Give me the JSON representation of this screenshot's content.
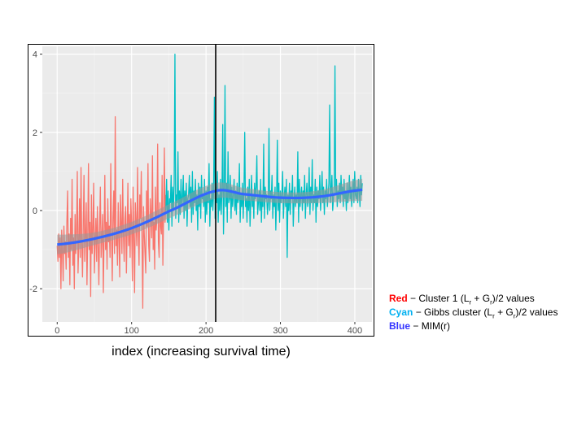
{
  "chart_data": {
    "type": "line",
    "xlabel": "index (increasing survival time)",
    "ylabel": "",
    "xlim": [
      -20,
      423
    ],
    "ylim": [
      -2.85,
      4.2
    ],
    "x_ticks": [
      0,
      100,
      200,
      300,
      400
    ],
    "y_ticks": [
      -2,
      0,
      2,
      4
    ],
    "x_tick_labels": [
      "0",
      "100",
      "200",
      "300",
      "400"
    ],
    "y_tick_labels": [
      "-2",
      "0",
      "2",
      "4"
    ],
    "grid": true,
    "vertical_line_x": 213,
    "series": [
      {
        "key": "red",
        "color": "#f8766d",
        "x_start": 0,
        "values": [
          -0.9,
          -1.3,
          -0.6,
          -1.2,
          -0.7,
          -2.0,
          -0.5,
          -1.0,
          -1.8,
          -0.4,
          -1.1,
          -0.8,
          -1.5,
          -0.3,
          0.5,
          -1.2,
          -0.6,
          -1.9,
          -0.2,
          -1.0,
          0.8,
          -1.4,
          -0.7,
          -2.0,
          -0.1,
          -1.1,
          -0.5,
          1.0,
          -1.6,
          -0.9,
          0.3,
          -1.2,
          1.1,
          -0.8,
          -1.7,
          -0.4,
          0.9,
          -1.3,
          -0.6,
          0.2,
          -1.9,
          -0.7,
          1.2,
          -1.0,
          -0.3,
          -2.2,
          0.4,
          -1.1,
          -0.5,
          0.7,
          -1.6,
          -0.8,
          -0.2,
          -1.3,
          0.1,
          -0.9,
          -1.9,
          -0.4,
          0.6,
          -1.2,
          -0.7,
          -0.1,
          -2.1,
          -0.6,
          0.9,
          -1.0,
          -0.3,
          -1.5,
          0.3,
          -0.8,
          -0.4,
          -1.2,
          1.2,
          -0.6,
          -1.8,
          -0.2,
          0.5,
          -1.1,
          2.4,
          -0.9,
          -0.5,
          -1.4,
          0.2,
          -0.7,
          -1.7,
          0.4,
          -0.3,
          -1.1,
          0.8,
          -0.6,
          -1.3,
          -0.2,
          0.1,
          -1.6,
          -0.5,
          0.7,
          -0.9,
          -0.1,
          -1.2,
          0.3,
          -0.4,
          -1.8,
          0.6,
          -0.7,
          -2.1,
          0.2,
          -0.3,
          -0.9,
          1.1,
          -0.5,
          -1.4,
          0.4,
          -0.2,
          1.0,
          -0.8,
          -2.5,
          0.1,
          -0.6,
          -1.1,
          -1.6,
          0.5,
          -0.4,
          1.2,
          -0.9,
          -1.3,
          0.3,
          -0.1,
          -0.7,
          1.4,
          -1.0,
          -0.3,
          -1.5,
          0.6,
          -0.5,
          -0.2,
          1.7,
          -0.8,
          -1.2,
          0.2,
          -0.4,
          -0.6,
          0.9,
          -1.4,
          -0.1,
          1.6,
          -0.3,
          0.4
        ]
      },
      {
        "key": "cyan",
        "color": "#00bfc4",
        "x_start": 146,
        "values": [
          0.0,
          0.8,
          -0.3,
          0.5,
          -0.5,
          0.3,
          0.2,
          0.9,
          -0.4,
          0.6,
          0.0,
          0.7,
          4.0,
          -0.2,
          0.4,
          0.2,
          1.5,
          -0.3,
          0.5,
          -0.1,
          0.8,
          0.1,
          0.3,
          0.9,
          -0.2,
          0.5,
          0.0,
          0.7,
          -0.4,
          0.3,
          0.4,
          0.9,
          0.1,
          0.6,
          -0.3,
          1.0,
          -0.1,
          0.5,
          0.2,
          0.8,
          0.0,
          0.4,
          -0.5,
          0.7,
          0.1,
          0.6,
          -0.2,
          0.9,
          0.3,
          0.4,
          0.1,
          0.8,
          -0.3,
          0.5,
          -0.1,
          0.6,
          0.2,
          1.2,
          -0.4,
          0.3,
          0.1,
          0.7,
          0.0,
          0.5,
          2.9,
          -0.2,
          0.6,
          0.2,
          1.0,
          -0.3,
          0.4,
          0.0,
          0.8,
          -0.1,
          0.5,
          2.2,
          -0.6,
          0.4,
          3.2,
          0.1,
          0.7,
          -0.3,
          1.5,
          0.2,
          0.3,
          0.9,
          -0.2,
          0.6,
          0.1,
          0.4,
          0.8,
          0.0,
          0.5,
          -0.1,
          0.7,
          0.2,
          0.3,
          1.2,
          -0.3,
          0.4,
          0.1,
          0.7,
          -0.2,
          0.5,
          2.0,
          0.1,
          0.3,
          -0.3,
          0.6,
          0.0,
          0.8,
          -0.4,
          0.2,
          0.9,
          0.1,
          0.4,
          -0.2,
          0.7,
          0.3,
          0.6,
          1.4,
          -0.1,
          0.2,
          0.5,
          0.0,
          0.8,
          -0.3,
          0.4,
          0.1,
          1.7,
          -0.2,
          0.6,
          0.3,
          0.4,
          -0.1,
          0.2,
          2.1,
          0.0,
          0.5,
          0.3,
          0.9,
          -0.2,
          0.4,
          0.1,
          0.6,
          -0.5,
          0.3,
          1.8,
          0.0,
          0.7,
          -0.3,
          0.5,
          0.2,
          0.4,
          1.0,
          -0.2,
          0.3,
          0.6,
          0.1,
          0.8,
          -1.2,
          0.4,
          0.0,
          0.7,
          -0.1,
          0.5,
          0.3,
          0.9,
          -0.4,
          0.2,
          0.6,
          0.1,
          0.4,
          0.2,
          1.5,
          -0.3,
          0.8,
          0.1,
          0.4,
          0.6,
          0.0,
          0.5,
          0.2,
          0.9,
          -0.2,
          0.4,
          0.7,
          0.1,
          0.3,
          1.1,
          -0.1,
          0.6,
          0.2,
          1.3,
          0.0,
          0.4,
          0.2,
          0.8,
          -0.3,
          0.6,
          0.1,
          0.5,
          0.3,
          0.9,
          0.0,
          0.4,
          1.0,
          0.2,
          0.6,
          -0.1,
          0.5,
          0.3,
          0.8,
          0.1,
          0.4,
          0.7,
          2.7,
          0.2,
          0.5,
          0.9,
          0.0,
          0.3,
          0.6,
          3.7,
          0.4,
          0.8,
          0.1,
          0.5,
          0.3,
          0.7,
          0.2,
          0.9,
          0.4,
          0.6,
          0.1,
          0.8,
          0.3,
          0.5,
          0.0,
          0.7,
          0.2,
          0.4,
          0.9,
          0.3,
          0.6,
          0.1,
          0.5,
          0.8,
          0.2,
          1.0,
          0.4,
          0.3,
          0.6,
          0.2,
          0.8,
          0.5,
          0.1,
          0.9,
          0.4,
          0.7
        ]
      }
    ],
    "smooth": {
      "key": "blue",
      "color": "#3366ff",
      "band_color": "#999999",
      "x": [
        0,
        50,
        100,
        150,
        213,
        250,
        300,
        350,
        410
      ],
      "y": [
        -0.87,
        -0.72,
        -0.45,
        -0.02,
        0.5,
        0.42,
        0.33,
        0.35,
        0.53
      ],
      "band": [
        0.25,
        0.16,
        0.16,
        0.18,
        0.2,
        0.16,
        0.14,
        0.16,
        0.28
      ]
    },
    "legend": [
      {
        "key": "Red",
        "text": "− Cluster 1 (L",
        "sub": "r",
        "text_mid": " + G",
        "sub2": "r",
        "text_end": ")/2 values",
        "color": "#ff0000"
      },
      {
        "key": "Cyan",
        "text": "− Gibbs cluster (L",
        "sub": "r",
        "text_mid": " + G",
        "sub2": "r",
        "text_end": ")/2 values",
        "color": "#00b0f0"
      },
      {
        "key": "Blue",
        "text": "− MIM(r)",
        "sub": "",
        "text_mid": "",
        "sub2": "",
        "text_end": "",
        "color": "#3333ff"
      }
    ]
  }
}
